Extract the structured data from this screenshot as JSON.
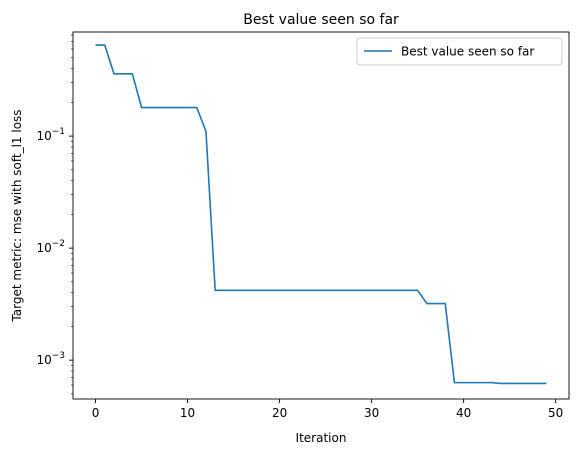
{
  "chart_data": {
    "type": "line",
    "title": "Best value seen so far",
    "xlabel": "Iteration",
    "ylabel": "Target metric: mse with soft_l1 loss",
    "xlim": [
      -2.45,
      51.45
    ],
    "ylim": [
      0.00045,
      0.85
    ],
    "yscale": "log",
    "grid": false,
    "legend_position": "top-right",
    "x_ticks": [
      0,
      10,
      20,
      30,
      40,
      50
    ],
    "x_tick_labels": [
      "0",
      "10",
      "20",
      "30",
      "40",
      "50"
    ],
    "y_ticks": [
      0.001,
      0.01,
      0.1
    ],
    "y_tick_labels": [
      {
        "base": "10",
        "exp": "−3"
      },
      {
        "base": "10",
        "exp": "−2"
      },
      {
        "base": "10",
        "exp": "−1"
      }
    ],
    "series": [
      {
        "name": "Best value seen so far",
        "color": "#1f77b4",
        "points": [
          [
            0,
            0.65
          ],
          [
            1,
            0.65
          ],
          [
            2,
            0.36
          ],
          [
            3,
            0.36
          ],
          [
            4,
            0.36
          ],
          [
            5,
            0.18
          ],
          [
            6,
            0.18
          ],
          [
            7,
            0.18
          ],
          [
            8,
            0.18
          ],
          [
            9,
            0.18
          ],
          [
            10,
            0.18
          ],
          [
            11,
            0.18
          ],
          [
            12,
            0.11
          ],
          [
            13,
            0.0042
          ],
          [
            14,
            0.0042
          ],
          [
            15,
            0.0042
          ],
          [
            16,
            0.0042
          ],
          [
            17,
            0.0042
          ],
          [
            18,
            0.0042
          ],
          [
            19,
            0.0042
          ],
          [
            20,
            0.0042
          ],
          [
            21,
            0.0042
          ],
          [
            22,
            0.0042
          ],
          [
            23,
            0.0042
          ],
          [
            24,
            0.0042
          ],
          [
            25,
            0.0042
          ],
          [
            26,
            0.0042
          ],
          [
            27,
            0.0042
          ],
          [
            28,
            0.0042
          ],
          [
            29,
            0.0042
          ],
          [
            30,
            0.0042
          ],
          [
            31,
            0.0042
          ],
          [
            32,
            0.0042
          ],
          [
            33,
            0.0042
          ],
          [
            34,
            0.0042
          ],
          [
            35,
            0.0042
          ],
          [
            36,
            0.0032
          ],
          [
            37,
            0.0032
          ],
          [
            38,
            0.0032
          ],
          [
            39,
            0.00063
          ],
          [
            40,
            0.00063
          ],
          [
            41,
            0.00063
          ],
          [
            42,
            0.00063
          ],
          [
            43,
            0.00063
          ],
          [
            44,
            0.00062
          ],
          [
            45,
            0.00062
          ],
          [
            46,
            0.00062
          ],
          [
            47,
            0.00062
          ],
          [
            48,
            0.00062
          ],
          [
            49,
            0.00062
          ]
        ]
      }
    ]
  }
}
